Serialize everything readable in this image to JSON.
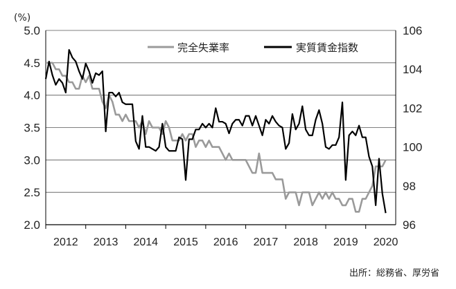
{
  "chart_data": {
    "type": "line",
    "unit_label": "(%)",
    "source": "出所：総務省、厚労省",
    "x_ticks": [
      "2012",
      "2013",
      "2014",
      "2015",
      "2016",
      "2017",
      "2018",
      "2019",
      "2020"
    ],
    "x_range": [
      2012.0,
      2020.75
    ],
    "left_axis": {
      "range": [
        2.0,
        5.0
      ],
      "ticks": [
        "2.0",
        "2.5",
        "3.0",
        "3.5",
        "4.0",
        "4.5",
        "5.0"
      ]
    },
    "right_axis": {
      "range": [
        96,
        106
      ],
      "ticks": [
        "96",
        "98",
        "100",
        "102",
        "104",
        "106"
      ]
    },
    "colors": {
      "unemployment": "#9a9a9a",
      "wage_index": "#000000"
    },
    "series": [
      {
        "name": "完全失業率",
        "axis": "left",
        "start": 2012.0,
        "step": 0.08333,
        "values": [
          4.5,
          4.5,
          4.5,
          4.4,
          4.4,
          4.3,
          4.3,
          4.2,
          4.2,
          4.1,
          4.1,
          4.3,
          4.2,
          4.3,
          4.1,
          4.1,
          4.1,
          3.9,
          3.8,
          4.0,
          3.9,
          3.7,
          3.7,
          3.6,
          3.7,
          3.6,
          3.6,
          3.6,
          3.5,
          3.6,
          3.4,
          3.6,
          3.5,
          3.5,
          3.5,
          3.4,
          3.6,
          3.5,
          3.3,
          3.3,
          3.3,
          3.4,
          3.3,
          3.4,
          3.4,
          3.2,
          3.3,
          3.3,
          3.2,
          3.3,
          3.2,
          3.2,
          3.2,
          3.1,
          3.0,
          3.1,
          3.0,
          3.0,
          3.0,
          3.0,
          3.0,
          2.9,
          2.8,
          2.8,
          3.1,
          2.8,
          2.8,
          2.8,
          2.8,
          2.7,
          2.7,
          2.7,
          2.4,
          2.5,
          2.5,
          2.5,
          2.3,
          2.5,
          2.5,
          2.5,
          2.3,
          2.4,
          2.5,
          2.4,
          2.5,
          2.4,
          2.5,
          2.4,
          2.4,
          2.3,
          2.3,
          2.4,
          2.4,
          2.2,
          2.2,
          2.4,
          2.4,
          2.5,
          2.6,
          2.9,
          2.9,
          2.9,
          3.0
        ]
      },
      {
        "name": "実質賃金指数",
        "axis": "right",
        "start": 2012.0,
        "step": 0.08333,
        "values": [
          103.5,
          104.4,
          103.7,
          103.2,
          103.5,
          103.3,
          102.8,
          105.0,
          104.6,
          104.4,
          103.9,
          103.5,
          104.3,
          103.9,
          103.3,
          103.8,
          103.7,
          103.9,
          100.8,
          102.8,
          102.8,
          102.6,
          102.8,
          102.3,
          102.2,
          102.2,
          102.2,
          100.3,
          99.9,
          101.6,
          100.0,
          100.0,
          99.9,
          99.8,
          100.0,
          101.2,
          100.0,
          99.8,
          99.8,
          99.8,
          100.5,
          100.4,
          98.3,
          100.4,
          100.4,
          100.9,
          100.9,
          101.2,
          101.0,
          101.2,
          101.0,
          102.0,
          101.3,
          101.3,
          101.2,
          100.7,
          101.2,
          101.4,
          101.4,
          101.1,
          101.6,
          101.6,
          101.1,
          101.6,
          101.1,
          100.6,
          101.4,
          101.2,
          101.6,
          101.3,
          101.1,
          101.0,
          99.9,
          100.2,
          101.7,
          100.9,
          101.2,
          102.1,
          100.9,
          100.6,
          100.6,
          101.4,
          101.9,
          101.2,
          100.0,
          99.9,
          100.1,
          100.1,
          100.5,
          102.3,
          98.3,
          100.6,
          100.8,
          100.6,
          101.1,
          100.5,
          100.5,
          99.5,
          99.0,
          97.0,
          99.4,
          97.6,
          96.6
        ]
      }
    ]
  }
}
